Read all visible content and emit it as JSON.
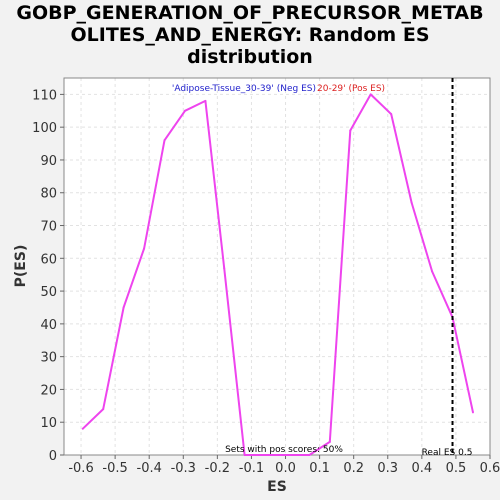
{
  "chart_data": {
    "type": "line",
    "title_line1": "GOBP_GENERATION_OF_PRECURSOR_METAB",
    "title_line2": "OLITES_AND_ENERGY: Random ES",
    "title_line3": "distribution",
    "xlabel": "ES",
    "ylabel": "P(ES)",
    "xlim": [
      -0.65,
      0.6
    ],
    "ylim": [
      0,
      115
    ],
    "x_ticks": [
      "-0.6",
      "-0.5",
      "-0.4",
      "-0.3",
      "-0.2",
      "-0.1",
      "0.0",
      "0.1",
      "0.2",
      "0.3",
      "0.4",
      "0.5",
      "0.6"
    ],
    "x_tick_values": [
      -0.6,
      -0.5,
      -0.4,
      -0.3,
      -0.2,
      -0.1,
      0.0,
      0.1,
      0.2,
      0.3,
      0.4,
      0.5,
      0.6
    ],
    "y_ticks": [
      "0",
      "10",
      "20",
      "30",
      "40",
      "50",
      "60",
      "70",
      "80",
      "90",
      "100",
      "110"
    ],
    "y_tick_values": [
      0,
      10,
      20,
      30,
      40,
      50,
      60,
      70,
      80,
      90,
      100,
      110
    ],
    "grid": true,
    "series": [
      {
        "color": "#ee44ee",
        "x": [
          -0.595,
          -0.535,
          -0.475,
          -0.415,
          -0.355,
          -0.295,
          -0.235,
          -0.18,
          -0.12,
          -0.06,
          0.0,
          0.07,
          0.13,
          0.19,
          0.25,
          0.31,
          0.37,
          0.43,
          0.49,
          0.55
        ],
        "y": [
          8,
          14,
          45,
          63,
          96,
          105,
          108,
          57,
          0,
          0,
          0,
          0,
          4,
          99,
          110,
          104,
          77,
          56,
          42,
          13
        ]
      }
    ],
    "real_es": 0.49,
    "annotations": {
      "neg_label": "'Adipose-Tissue_30-39' (Neg ES)",
      "pos_label": "20-29' (Pos ES)",
      "sets_label": "Sets with pos scores: 50%",
      "real_es_label": "Real ES 0.5"
    },
    "colors": {
      "neg_label": "#2222cc",
      "pos_label": "#dd2222",
      "line": "#ee44ee"
    }
  }
}
